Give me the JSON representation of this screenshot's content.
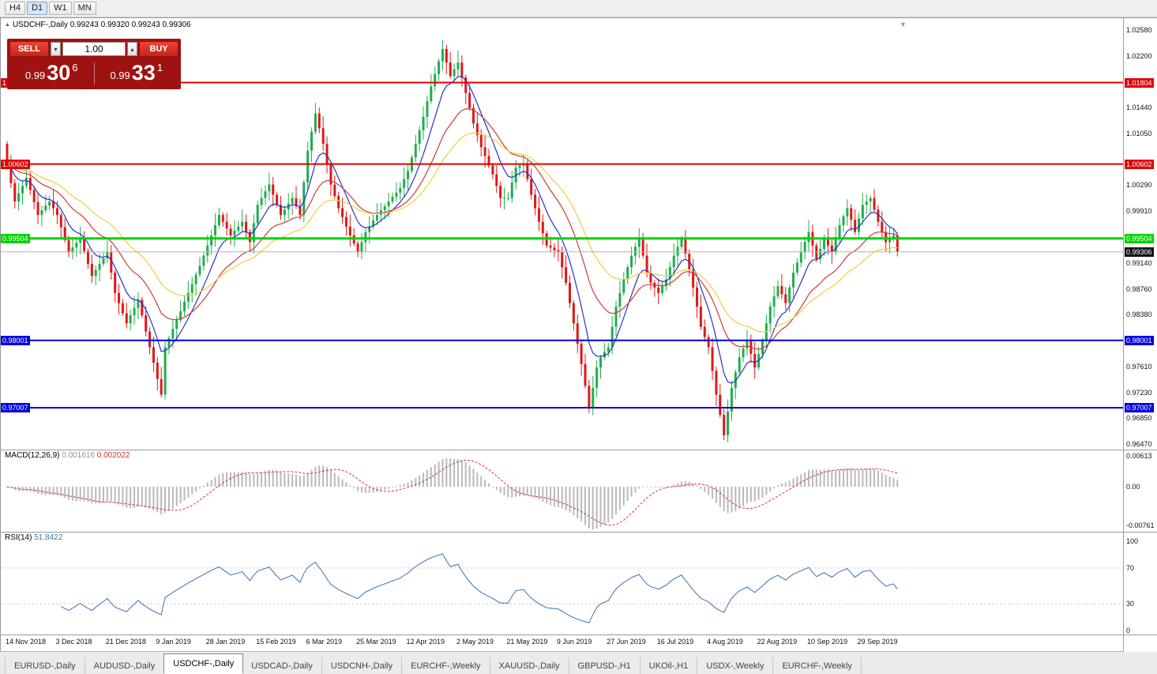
{
  "toolbar": {
    "timeframes": [
      "H4",
      "D1",
      "W1",
      "MN"
    ],
    "active": "D1"
  },
  "icons": {
    "collapse": "▲",
    "shift_marker": "▼",
    "spin_up": "▴",
    "spin_down": "▾"
  },
  "chart_header": {
    "symbol": "USDCHF-,Daily",
    "ohlc": "0.99243 0.99320 0.99243 0.99306"
  },
  "trade_panel": {
    "sell_label": "SELL",
    "buy_label": "BUY",
    "volume": "1.00",
    "bid_prefix": "0.99",
    "bid_big": "30",
    "bid_sup": "6",
    "ask_prefix": "0.99",
    "ask_big": "33",
    "ask_sup": "1"
  },
  "lines": [
    {
      "price": 1.01804,
      "label": "1.01804",
      "color": "#e00000",
      "width": 2
    },
    {
      "price": 1.00602,
      "label": "1.00602",
      "color": "#e00000",
      "width": 2
    },
    {
      "price": 0.99504,
      "label": "0.99504",
      "color": "#00d400",
      "width": 3
    },
    {
      "price": 0.98001,
      "label": "0.98001",
      "color": "#0000e0",
      "width": 2
    },
    {
      "price": 0.97007,
      "label": "0.97007",
      "color": "#0000e0",
      "width": 2
    }
  ],
  "current_price": {
    "value": 0.99306,
    "label": "0.99306"
  },
  "price_scale": [
    "1.02580",
    "1.02200",
    "1.01440",
    "1.01050",
    "1.00290",
    "0.99910",
    "0.99140",
    "0.98760",
    "0.98380",
    "0.97610",
    "0.97230",
    "0.96850",
    "0.96470"
  ],
  "macd_panel": {
    "label": "MACD(12,26,9)",
    "value_main": "0.001616",
    "value_signal": "0.002022",
    "scale": [
      {
        "v": 0.00613,
        "label": "0.00613"
      },
      {
        "v": 0,
        "label": "0.00"
      },
      {
        "v": -0.00761,
        "label": "-0.00761"
      }
    ]
  },
  "rsi_panel": {
    "label": "RSI(14)",
    "value": "51.8422",
    "scale": [
      {
        "v": 100,
        "label": "100"
      },
      {
        "v": 70,
        "label": "70"
      },
      {
        "v": 30,
        "label": "30"
      },
      {
        "v": 0,
        "label": "0"
      }
    ],
    "levels": [
      70,
      30
    ]
  },
  "dates": [
    "14 Nov 2018",
    "3 Dec 2018",
    "21 Dec 2018",
    "9 Jan 2019",
    "28 Jan 2019",
    "15 Feb 2019",
    "6 Mar 2019",
    "25 Mar 2019",
    "12 Apr 2019",
    "2 May 2019",
    "21 May 2019",
    "9 Jun 2019",
    "27 Jun 2019",
    "16 Jul 2019",
    "4 Aug 2019",
    "22 Aug 2019",
    "10 Sep 2019",
    "29 Sep 2019"
  ],
  "tabs": {
    "active_index": 2,
    "items": [
      "EURUSD-,Daily",
      "AUDUSD-,Daily",
      "USDCHF-,Daily",
      "USDCAD-,Daily",
      "USDCNH-,Daily",
      "EURCHF-,Weekly",
      "XAUUSD-,Daily",
      "GBPUSD-,H1",
      "UKOil-,H1",
      "USDX-,Weekly",
      "EURCHF-,Weekly"
    ]
  },
  "colors": {
    "up": "#1fae4d",
    "down": "#e01717",
    "ma_fast": "#2733cf",
    "ma_mid": "#cf3b3b",
    "ma_slow": "#efcf3b",
    "rsi": "#4a7db5",
    "rsi_level": "#c8c8c8",
    "macd_hist": "#b9b9b9",
    "macd_signal": "#d23535",
    "current_line": "#b4b4b4",
    "current_tag_bg": "#111111"
  },
  "chart_data": {
    "type": "candlestick",
    "symbol": "USDCHF",
    "timeframe": "Daily",
    "title": "USDCHF-,Daily",
    "current_ohlc": {
      "open": 0.99243,
      "high": 0.9932,
      "low": 0.99243,
      "close": 0.99306
    },
    "y_range": [
      0.9647,
      1.0258
    ],
    "x_first": "14 Nov 2018",
    "x_last": "8 Oct 2019",
    "support_resistance_levels": [
      1.01804,
      1.00602,
      0.99504,
      0.98001,
      0.97007
    ],
    "moving_averages": [
      {
        "period": 8,
        "color": "#2733cf"
      },
      {
        "period": 20,
        "color": "#cf3b3b"
      },
      {
        "period": 34,
        "color": "#efcf3b"
      }
    ],
    "macd_params": [
      12,
      26,
      9
    ],
    "macd_current": [
      0.001616,
      0.002022
    ],
    "rsi_period": 14,
    "rsi_current": 51.8422,
    "closes": [
      1.006,
      1.0032,
      1.0005,
      1.0017,
      1.0028,
      1.004,
      1.0022,
      1.0004,
      0.9985,
      0.9992,
      0.9999,
      1.0005,
      0.9995,
      0.9985,
      0.9967,
      0.9948,
      0.993,
      0.9937,
      0.9944,
      0.995,
      0.9932,
      0.9913,
      0.9895,
      0.9904,
      0.9913,
      0.9921,
      0.993,
      0.99,
      0.987,
      0.9855,
      0.984,
      0.9825,
      0.9837,
      0.9848,
      0.986,
      0.9837,
      0.9813,
      0.979,
      0.9767,
      0.9743,
      0.972,
      0.979,
      0.9803,
      0.9817,
      0.983,
      0.9843,
      0.9857,
      0.987,
      0.9883,
      0.9897,
      0.991,
      0.9925,
      0.994,
      0.9955,
      0.997,
      0.9985,
      0.9975,
      0.9965,
      0.9955,
      0.9962,
      0.9968,
      0.9975,
      0.996,
      0.9945,
      0.9973,
      1.0,
      1.001,
      1.002,
      1.003,
      1.0015,
      1.0,
      0.9985,
      0.9993,
      1.0002,
      1.001,
      0.9998,
      0.9985,
      1.0033,
      1.008,
      1.0108,
      1.0135,
      1.0113,
      1.009,
      1.006,
      1.003,
      1.0013,
      0.9995,
      0.9982,
      0.9968,
      0.9955,
      0.9943,
      0.993,
      0.9945,
      0.996,
      0.9968,
      0.9977,
      0.9985,
      0.9992,
      0.9998,
      1.0005,
      1.0012,
      1.0018,
      1.0025,
      1.0038,
      1.005,
      1.007,
      1.009,
      1.011,
      1.013,
      1.0153,
      1.0175,
      1.0193,
      1.0212,
      1.023,
      1.021,
      1.019,
      1.02,
      1.021,
      1.0188,
      1.0165,
      1.0143,
      1.012,
      1.0103,
      1.0085,
      1.0072,
      1.0058,
      1.0045,
      1.0028,
      1.001,
      1.001,
      1.001,
      1.0033,
      1.0055,
      1.0058,
      1.006,
      1.0038,
      1.0015,
      0.9995,
      0.9975,
      0.9958,
      0.994,
      0.9937,
      0.9933,
      0.993,
      0.9908,
      0.9885,
      0.9855,
      0.9825,
      0.9795,
      0.9765,
      0.9733,
      0.97,
      0.973,
      0.976,
      0.9775,
      0.9783,
      0.979,
      0.982,
      0.985,
      0.987,
      0.989,
      0.9908,
      0.9925,
      0.9938,
      0.995,
      0.9925,
      0.99,
      0.9885,
      0.9878,
      0.987,
      0.988,
      0.989,
      0.9908,
      0.9925,
      0.9938,
      0.995,
      0.9928,
      0.9905,
      0.9878,
      0.985,
      0.982,
      0.9805,
      0.979,
      0.9755,
      0.972,
      0.969,
      0.966,
      0.9695,
      0.973,
      0.9753,
      0.9775,
      0.9788,
      0.98,
      0.978,
      0.976,
      0.978,
      0.98,
      0.9825,
      0.985,
      0.9865,
      0.988,
      0.9868,
      0.9855,
      0.9878,
      0.99,
      0.9915,
      0.993,
      0.9945,
      0.996,
      0.994,
      0.992,
      0.9935,
      0.995,
      0.994,
      0.993,
      0.995,
      0.997,
      0.9983,
      0.9995,
      0.9978,
      0.996,
      0.998,
      1.0,
      1.0005,
      1.001,
      0.9993,
      0.9975,
      0.996,
      0.9945,
      0.995,
      0.9955,
      0.9931
    ]
  }
}
